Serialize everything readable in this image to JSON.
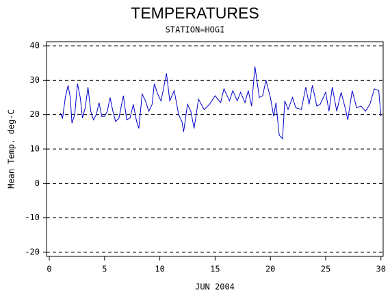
{
  "chart_data": {
    "type": "line",
    "title": "TEMPERATURES",
    "subtitle": "STATION=HOGI",
    "xlabel": "JUN 2004",
    "ylabel": "Mean Temp. deg-C",
    "x": [
      1,
      1.2,
      1.45,
      1.7,
      1.9,
      2.05,
      2.3,
      2.55,
      2.8,
      3.0,
      3.25,
      3.5,
      3.75,
      4.0,
      4.25,
      4.5,
      4.75,
      5.0,
      5.25,
      5.5,
      5.75,
      6.0,
      6.3,
      6.7,
      7.0,
      7.3,
      7.6,
      7.9,
      8.1,
      8.4,
      8.7,
      9.0,
      9.3,
      9.5,
      9.8,
      10.1,
      10.3,
      10.6,
      10.9,
      11.3,
      11.7,
      12.0,
      12.15,
      12.5,
      12.8,
      13.1,
      13.5,
      14.0,
      14.5,
      15.0,
      15.5,
      15.8,
      16.3,
      16.6,
      17.0,
      17.3,
      17.7,
      18.0,
      18.3,
      18.6,
      19.0,
      19.3,
      19.6,
      20.0,
      20.3,
      20.5,
      20.8,
      21.1,
      21.3,
      21.6,
      22.0,
      22.3,
      22.8,
      23.2,
      23.5,
      23.8,
      24.2,
      24.5,
      25.0,
      25.3,
      25.6,
      26.0,
      26.4,
      26.8,
      27.0,
      27.4,
      27.8,
      28.2,
      28.6,
      29.0,
      29.4,
      29.8,
      30.0
    ],
    "series": [
      {
        "color": "#0000cc",
        "values": [
          20.5,
          19,
          25,
          28.5,
          25,
          17.5,
          20,
          29,
          25,
          19,
          22,
          28,
          21,
          18.5,
          20,
          23.5,
          19.5,
          19.5,
          21,
          25,
          21,
          18,
          19,
          25.5,
          18.5,
          19,
          23,
          18,
          16,
          26,
          24,
          21,
          23,
          29,
          26,
          24,
          27,
          32,
          24,
          27,
          20,
          18,
          15,
          23,
          21,
          16,
          24.5,
          21.5,
          23,
          25.5,
          23.5,
          27.5,
          24,
          27,
          24,
          26.5,
          23.5,
          27,
          22.5,
          34,
          25,
          25.5,
          30,
          25,
          19.5,
          23.5,
          14,
          13,
          24,
          21.5,
          25,
          22,
          21.5,
          28,
          23,
          28.5,
          22.5,
          23,
          26.5,
          21,
          28,
          21,
          26.5,
          21.5,
          18.5,
          27,
          22,
          22.5,
          21,
          23,
          27.5,
          27,
          19.5
        ]
      }
    ],
    "xlim": [
      -0.25,
      30.2
    ],
    "xticks": [
      0,
      5,
      10,
      15,
      20,
      25,
      30
    ],
    "ylim": [
      -21.2,
      41.2
    ],
    "yticks": [
      -20,
      -10,
      0,
      10,
      20,
      30,
      40
    ],
    "grid": true
  }
}
